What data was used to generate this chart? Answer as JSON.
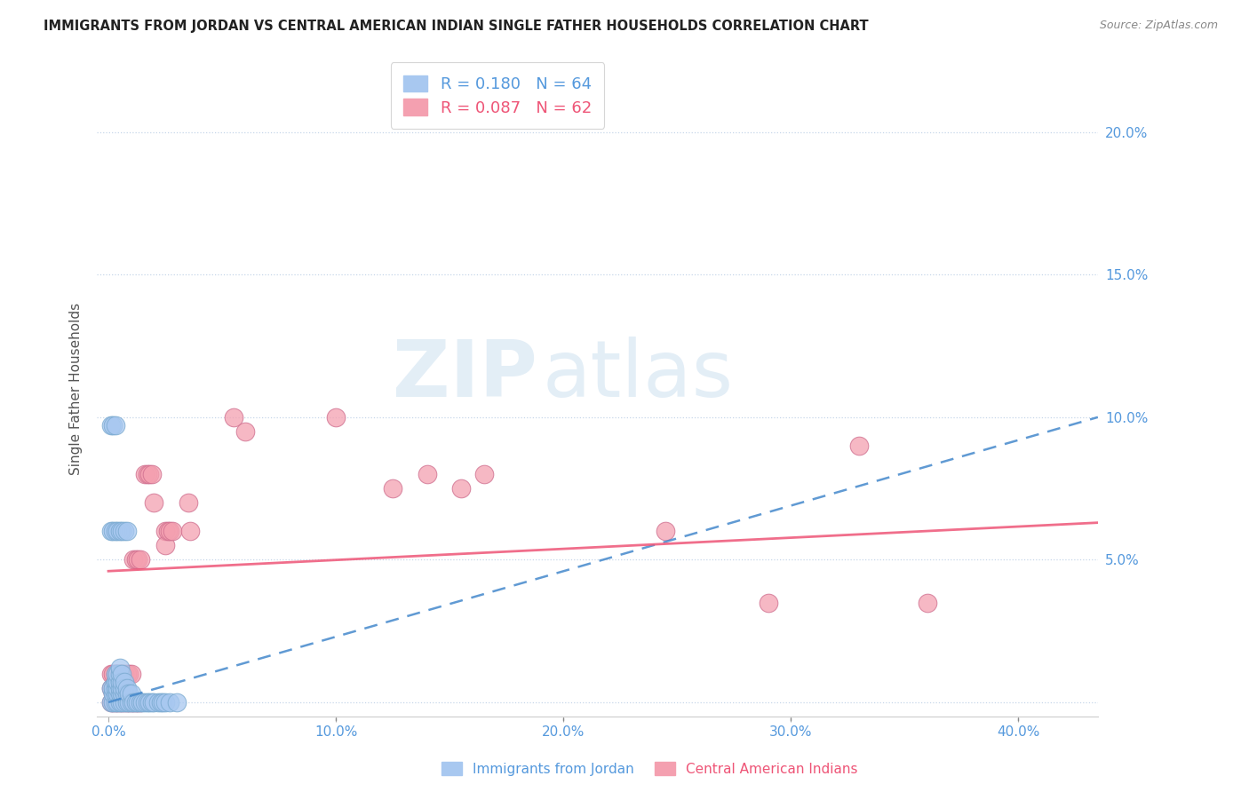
{
  "title": "IMMIGRANTS FROM JORDAN VS CENTRAL AMERICAN INDIAN SINGLE FATHER HOUSEHOLDS CORRELATION CHART",
  "source": "Source: ZipAtlas.com",
  "xlabel_ticks": [
    "0.0%",
    "10.0%",
    "20.0%",
    "30.0%",
    "40.0%"
  ],
  "xlabel_tick_vals": [
    0.0,
    0.1,
    0.2,
    0.3,
    0.4
  ],
  "ylabel": "Single Father Households",
  "ylim": [
    -0.005,
    0.225
  ],
  "xlim": [
    -0.005,
    0.435
  ],
  "R_jordan": 0.18,
  "N_jordan": 64,
  "R_ca_indian": 0.087,
  "N_ca_indian": 62,
  "jordan_color": "#a8c8f0",
  "jordan_edge_color": "#7aaad0",
  "ca_indian_color": "#f4a0b0",
  "ca_indian_edge_color": "#d07090",
  "jordan_line_color": "#4488cc",
  "ca_indian_line_color": "#ee5577",
  "jordan_trend": [
    0.0,
    0.0,
    0.435,
    0.1
  ],
  "ca_indian_trend": [
    0.0,
    0.046,
    0.435,
    0.063
  ],
  "watermark_zip": "ZIP",
  "watermark_atlas": "atlas",
  "jordan_x": [
    0.001,
    0.001,
    0.002,
    0.002,
    0.002,
    0.003,
    0.003,
    0.003,
    0.003,
    0.003,
    0.004,
    0.004,
    0.004,
    0.004,
    0.004,
    0.005,
    0.005,
    0.005,
    0.005,
    0.005,
    0.005,
    0.006,
    0.006,
    0.006,
    0.006,
    0.006,
    0.007,
    0.007,
    0.007,
    0.007,
    0.008,
    0.008,
    0.008,
    0.009,
    0.009,
    0.01,
    0.01,
    0.011,
    0.012,
    0.013,
    0.014,
    0.015,
    0.016,
    0.017,
    0.018,
    0.019,
    0.02,
    0.022,
    0.023,
    0.024,
    0.025,
    0.027,
    0.03,
    0.001,
    0.002,
    0.003,
    0.001,
    0.002,
    0.003,
    0.004,
    0.005,
    0.006,
    0.007,
    0.008
  ],
  "jordan_y": [
    0.0,
    0.005,
    0.0,
    0.003,
    0.005,
    0.0,
    0.003,
    0.005,
    0.007,
    0.01,
    0.0,
    0.003,
    0.005,
    0.007,
    0.01,
    0.0,
    0.003,
    0.005,
    0.007,
    0.01,
    0.012,
    0.0,
    0.003,
    0.005,
    0.007,
    0.01,
    0.0,
    0.003,
    0.005,
    0.007,
    0.0,
    0.003,
    0.005,
    0.0,
    0.003,
    0.0,
    0.003,
    0.0,
    0.0,
    0.0,
    0.0,
    0.0,
    0.0,
    0.0,
    0.0,
    0.0,
    0.0,
    0.0,
    0.0,
    0.0,
    0.0,
    0.0,
    0.0,
    0.097,
    0.097,
    0.097,
    0.06,
    0.06,
    0.06,
    0.06,
    0.06,
    0.06,
    0.06,
    0.06
  ],
  "ca_x": [
    0.001,
    0.001,
    0.001,
    0.002,
    0.002,
    0.002,
    0.002,
    0.003,
    0.003,
    0.003,
    0.003,
    0.003,
    0.004,
    0.004,
    0.004,
    0.004,
    0.004,
    0.005,
    0.005,
    0.005,
    0.006,
    0.006,
    0.006,
    0.007,
    0.007,
    0.008,
    0.008,
    0.009,
    0.009,
    0.01,
    0.01,
    0.011,
    0.011,
    0.012,
    0.012,
    0.013,
    0.013,
    0.014,
    0.014,
    0.016,
    0.017,
    0.018,
    0.019,
    0.02,
    0.025,
    0.025,
    0.026,
    0.027,
    0.028,
    0.035,
    0.036,
    0.055,
    0.06,
    0.1,
    0.125,
    0.14,
    0.155,
    0.165,
    0.245,
    0.29,
    0.33,
    0.36
  ],
  "ca_y": [
    0.0,
    0.005,
    0.01,
    0.0,
    0.003,
    0.005,
    0.01,
    0.0,
    0.003,
    0.005,
    0.007,
    0.01,
    0.0,
    0.003,
    0.005,
    0.007,
    0.01,
    0.0,
    0.003,
    0.01,
    0.0,
    0.003,
    0.01,
    0.0,
    0.01,
    0.0,
    0.01,
    0.0,
    0.01,
    0.0,
    0.01,
    0.0,
    0.05,
    0.0,
    0.05,
    0.0,
    0.05,
    0.0,
    0.05,
    0.08,
    0.08,
    0.08,
    0.08,
    0.07,
    0.06,
    0.055,
    0.06,
    0.06,
    0.06,
    0.07,
    0.06,
    0.1,
    0.095,
    0.1,
    0.075,
    0.08,
    0.075,
    0.08,
    0.06,
    0.035,
    0.09,
    0.035
  ]
}
